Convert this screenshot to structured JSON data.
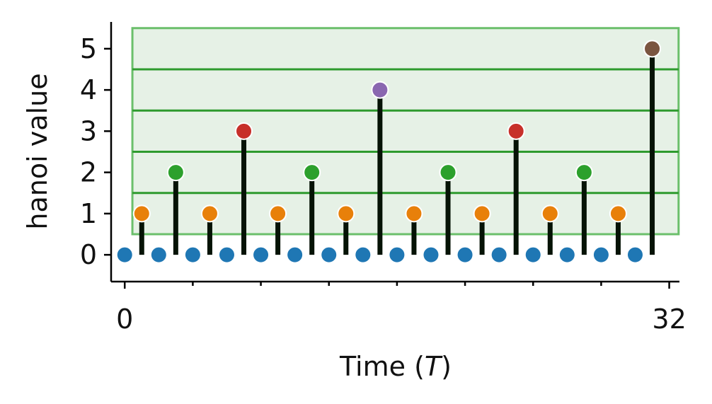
{
  "chart_data": {
    "type": "scatter",
    "xlabel_main": "Time (",
    "xlabel_italic": "T",
    "xlabel_close": ")",
    "ylabel": "hanoi value",
    "xlim": [
      -0.8,
      32.6
    ],
    "ylim": [
      -0.65,
      5.65
    ],
    "x_ticks_labeled": [
      0,
      32
    ],
    "x_tick_labels": [
      "0",
      "32"
    ],
    "x_minor_ticks": [
      4,
      8,
      12,
      16,
      20,
      24,
      28
    ],
    "y_ticks": [
      0,
      1,
      2,
      3,
      4,
      5
    ],
    "y_tick_labels": [
      "0",
      "1",
      "2",
      "3",
      "4",
      "5"
    ],
    "x": [
      0,
      1,
      2,
      3,
      4,
      5,
      6,
      7,
      8,
      9,
      10,
      11,
      12,
      13,
      14,
      15,
      16,
      17,
      18,
      19,
      20,
      21,
      22,
      23,
      24,
      25,
      26,
      27,
      28,
      29,
      30,
      31
    ],
    "values": [
      0,
      1,
      0,
      2,
      0,
      1,
      0,
      3,
      0,
      1,
      0,
      2,
      0,
      1,
      0,
      4,
      0,
      1,
      0,
      2,
      0,
      1,
      0,
      3,
      0,
      1,
      0,
      2,
      0,
      1,
      0,
      5
    ],
    "level_colors": [
      "#1f77b4",
      "#e8800a",
      "#2ca02c",
      "#c7302a",
      "#8a67b0",
      "#7a5540"
    ],
    "stem_color": "#061306",
    "band": {
      "y_from": 0.5,
      "y_to": 5.5,
      "fill": "#e6f1e6",
      "edge": "#6bbf6b"
    },
    "band_lines_y": [
      1.5,
      2.5,
      3.5,
      4.5
    ],
    "band_line_color": "#2e9a2e",
    "grid": false
  }
}
